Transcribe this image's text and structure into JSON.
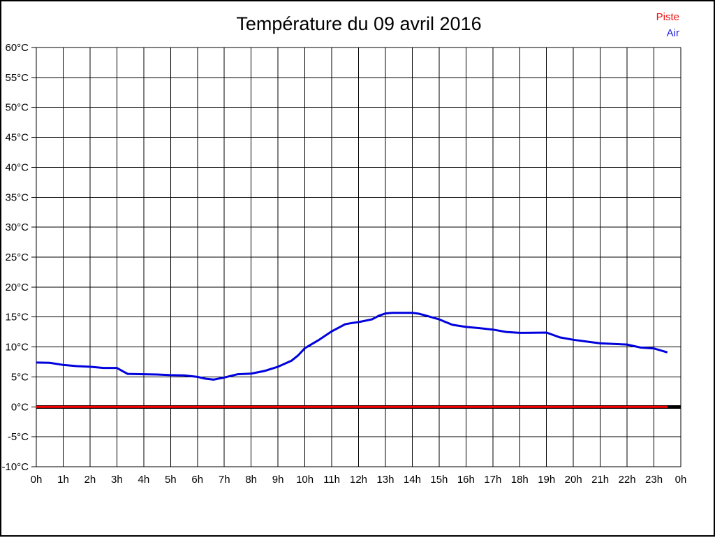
{
  "title": "Température du 09 avril 2016",
  "legend": {
    "position": "top-right",
    "items": [
      {
        "label": "Piste",
        "color": "#ee1111"
      },
      {
        "label": "Air",
        "color": "#2222dd"
      }
    ]
  },
  "chart_data": {
    "type": "line",
    "title": "Température du 09 avril 2016",
    "xlabel": "",
    "ylabel": "",
    "xlim": [
      0,
      24
    ],
    "ylim": [
      -10,
      60
    ],
    "y_step": 5,
    "grid": true,
    "x_tick_labels": [
      "0h",
      "1h",
      "2h",
      "3h",
      "4h",
      "5h",
      "6h",
      "7h",
      "8h",
      "9h",
      "10h",
      "11h",
      "12h",
      "13h",
      "14h",
      "15h",
      "16h",
      "17h",
      "18h",
      "19h",
      "20h",
      "21h",
      "22h",
      "23h",
      "0h"
    ],
    "y_tick_labels": [
      "60°C",
      "55°C",
      "50°C",
      "45°C",
      "40°C",
      "35°C",
      "30°C",
      "25°C",
      "20°C",
      "15°C",
      "10°C",
      "5°C",
      "0°C",
      "-5°C",
      "-10°C"
    ],
    "zero_line": {
      "value": 0,
      "color": "#000000"
    },
    "series": [
      {
        "name": "Piste",
        "color": "#ff0000",
        "points": [
          [
            0,
            0.0
          ],
          [
            23.5,
            0.0
          ]
        ]
      },
      {
        "name": "Air",
        "color": "#0000dd",
        "points": [
          [
            0,
            7.4
          ],
          [
            0.5,
            7.35
          ],
          [
            1,
            7.0
          ],
          [
            1.5,
            6.8
          ],
          [
            2,
            6.7
          ],
          [
            2.5,
            6.5
          ],
          [
            3,
            6.5
          ],
          [
            3.2,
            6.0
          ],
          [
            3.4,
            5.5
          ],
          [
            4,
            5.45
          ],
          [
            4.5,
            5.4
          ],
          [
            5,
            5.3
          ],
          [
            5.5,
            5.25
          ],
          [
            6,
            5.0
          ],
          [
            6.3,
            4.7
          ],
          [
            6.6,
            4.55
          ],
          [
            7,
            4.9
          ],
          [
            7.5,
            5.45
          ],
          [
            8,
            5.55
          ],
          [
            8.5,
            6.0
          ],
          [
            9,
            6.7
          ],
          [
            9.5,
            7.7
          ],
          [
            9.75,
            8.6
          ],
          [
            10,
            9.8
          ],
          [
            10.5,
            11.1
          ],
          [
            11,
            12.6
          ],
          [
            11.5,
            13.8
          ],
          [
            11.75,
            14.0
          ],
          [
            12,
            14.15
          ],
          [
            12.5,
            14.6
          ],
          [
            12.75,
            15.2
          ],
          [
            13,
            15.6
          ],
          [
            13.25,
            15.7
          ],
          [
            14,
            15.7
          ],
          [
            14.25,
            15.55
          ],
          [
            14.5,
            15.25
          ],
          [
            15,
            14.6
          ],
          [
            15.5,
            13.7
          ],
          [
            16,
            13.35
          ],
          [
            16.5,
            13.15
          ],
          [
            17,
            12.9
          ],
          [
            17.5,
            12.5
          ],
          [
            18,
            12.35
          ],
          [
            19,
            12.4
          ],
          [
            19.5,
            11.6
          ],
          [
            20,
            11.2
          ],
          [
            20.5,
            10.9
          ],
          [
            21,
            10.6
          ],
          [
            21.5,
            10.5
          ],
          [
            22,
            10.4
          ],
          [
            22.5,
            9.9
          ],
          [
            23,
            9.75
          ],
          [
            23.5,
            9.1
          ]
        ]
      }
    ]
  }
}
